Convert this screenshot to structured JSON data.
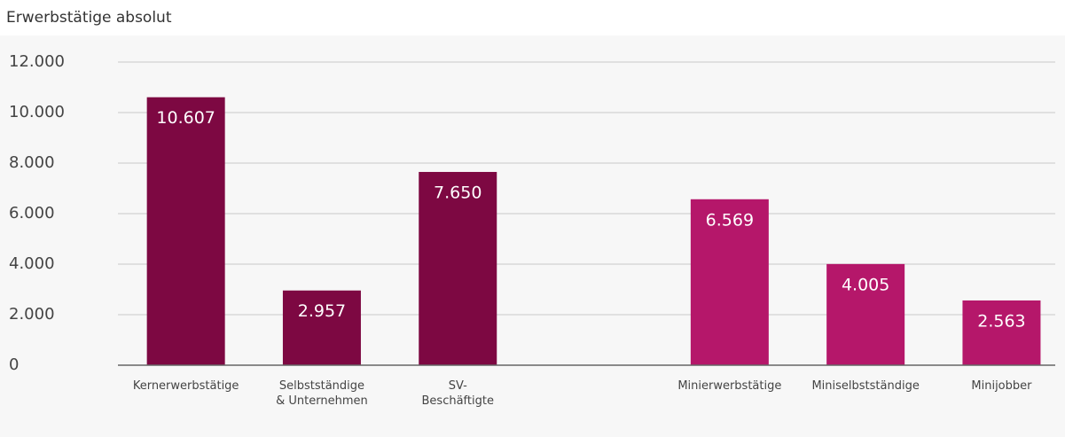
{
  "chart_data": {
    "type": "bar",
    "title": "Erwerbstätige absolut",
    "categories": [
      "Kernerwerbstätige",
      "Selbstständige\n& Unternehmen",
      "SV-\nBeschäftigte",
      null,
      "Minierwerbstätige",
      "Miniselbstständige",
      "Minijobber"
    ],
    "values": [
      10607,
      2957,
      7650,
      null,
      6569,
      4005,
      2563
    ],
    "value_labels": [
      "10.607",
      "2.957",
      "7.650",
      null,
      "6.569",
      "4.005",
      "2.563"
    ],
    "colors": [
      "#7d0842",
      "#7d0842",
      "#7d0842",
      null,
      "#b5176a",
      "#b5176a",
      "#b5176a"
    ],
    "ylim": [
      0,
      12000
    ],
    "yticks": [
      0,
      {
        "value": 2000,
        "label": "2.000"
      },
      {
        "value": 4000,
        "label": "4.000"
      },
      {
        "value": 6000,
        "label": "6.000"
      },
      {
        "value": 8000,
        "label": "8.000"
      },
      {
        "value": 10000,
        "label": "10.000"
      },
      {
        "value": 12000,
        "label": "12.000"
      }
    ],
    "grid": true
  }
}
